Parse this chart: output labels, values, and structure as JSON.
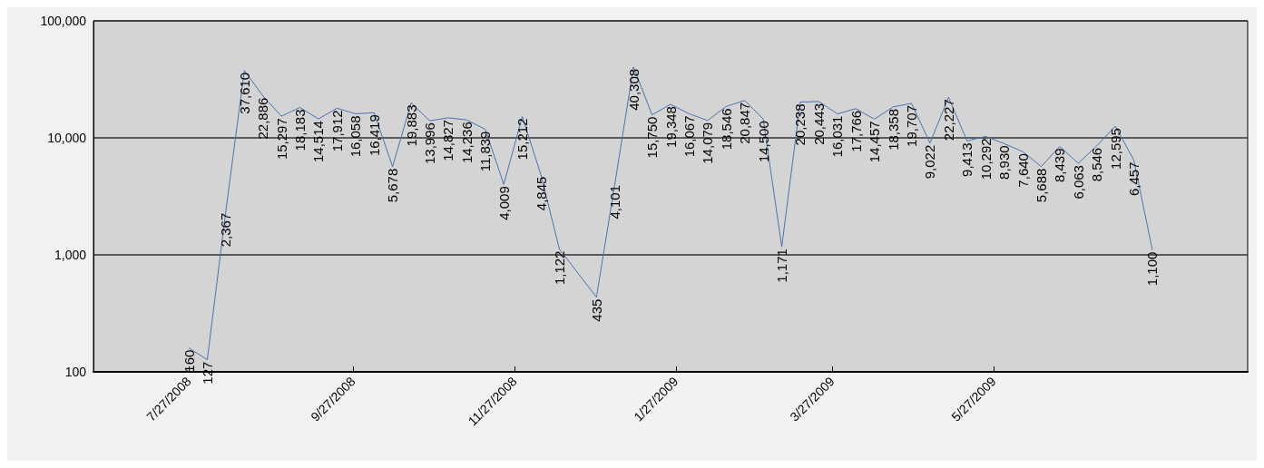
{
  "chart_data": {
    "type": "line",
    "x": [
      "2008-07-27",
      "2008-08-03",
      "2008-08-10",
      "2008-08-17",
      "2008-08-24",
      "2008-08-31",
      "2008-09-07",
      "2008-09-14",
      "2008-09-21",
      "2008-09-28",
      "2008-10-05",
      "2008-10-12",
      "2008-10-19",
      "2008-10-26",
      "2008-11-02",
      "2008-11-09",
      "2008-11-16",
      "2008-11-23",
      "2008-11-30",
      "2008-12-07",
      "2008-12-14",
      "2008-12-28",
      "2009-01-04",
      "2009-01-11",
      "2009-01-18",
      "2009-01-25",
      "2009-02-01",
      "2009-02-08",
      "2009-02-15",
      "2009-02-22",
      "2009-03-01",
      "2009-03-08",
      "2009-03-15",
      "2009-03-22",
      "2009-03-29",
      "2009-04-05",
      "2009-04-12",
      "2009-04-19",
      "2009-04-26",
      "2009-05-03",
      "2009-05-10",
      "2009-05-17",
      "2009-05-24",
      "2009-05-31",
      "2009-06-07",
      "2009-06-14",
      "2009-06-21",
      "2009-06-28",
      "2009-07-05",
      "2009-07-12",
      "2009-07-19",
      "2009-07-26"
    ],
    "series": [
      {
        "color": "#4a72b0",
        "values": [
          160,
          127,
          2367,
          37610,
          22886,
          15297,
          18183,
          14514,
          17912,
          16058,
          16419,
          5678,
          19883,
          13996,
          14827,
          14236,
          11839,
          4009,
          15212,
          4845,
          1122,
          435,
          4101,
          40308,
          15750,
          19348,
          16067,
          14079,
          18546,
          20847,
          14500,
          1171,
          20238,
          20443,
          16031,
          17766,
          14457,
          18358,
          19707,
          9022,
          22227,
          9413,
          10292,
          8930,
          7640,
          5688,
          8439,
          6063,
          8546,
          12595,
          6457,
          1100
        ],
        "value_labels": [
          "160",
          "127",
          "2,367",
          "37,610",
          "22,886",
          "15,297",
          "18,183",
          "14,514",
          "17,912",
          "16,058",
          "16,419",
          "5,678",
          "19,883",
          "13,996",
          "14,827",
          "14,236",
          "11,839",
          "4,009",
          "15,212",
          "4,845",
          "1,122",
          "435",
          "4,101",
          "40,308",
          "15,750",
          "19,348",
          "16,067",
          "14,079",
          "18,546",
          "20,847",
          "14,500",
          "1,171",
          "20,238",
          "20,443",
          "16,031",
          "17,766",
          "14,457",
          "18,358",
          "19,707",
          "9,022",
          "22,227",
          "9,413",
          "10,292",
          "8,930",
          "7,640",
          "5,688",
          "8,439",
          "6,063",
          "8,546",
          "12,595",
          "6,457",
          "1,100"
        ]
      }
    ],
    "log": "y",
    "ylim": [
      100,
      100000
    ],
    "yticks": [
      {
        "value": 100,
        "label": "100"
      },
      {
        "value": 1000,
        "label": "1,000"
      },
      {
        "value": 10000,
        "label": "10,000"
      },
      {
        "value": 100000,
        "label": "100,000"
      }
    ],
    "xlim": [
      "2008-06-21",
      "2009-08-31"
    ],
    "xticks": [
      {
        "value": "2008-07-27",
        "label": "7/27/2008"
      },
      {
        "value": "2008-09-27",
        "label": "9/27/2008"
      },
      {
        "value": "2008-11-27",
        "label": "11/27/2008"
      },
      {
        "value": "2009-01-27",
        "label": "1/27/2009"
      },
      {
        "value": "2009-03-27",
        "label": "3/27/2009"
      },
      {
        "value": "2009-05-27",
        "label": "5/27/2009"
      }
    ],
    "grid": "y",
    "marker": "none",
    "line_style": "solid"
  }
}
